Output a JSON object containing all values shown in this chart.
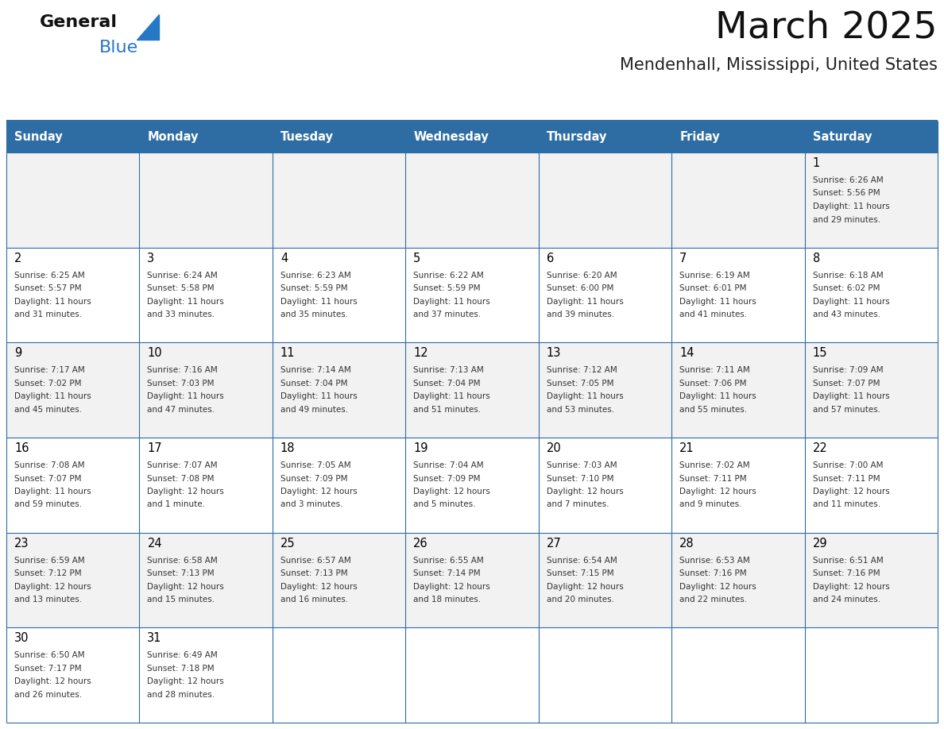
{
  "title": "March 2025",
  "subtitle": "Mendenhall, Mississippi, United States",
  "header_bg": "#2E6DA4",
  "header_text_color": "#FFFFFF",
  "day_names": [
    "Sunday",
    "Monday",
    "Tuesday",
    "Wednesday",
    "Thursday",
    "Friday",
    "Saturday"
  ],
  "row0_bg": "#F2F2F2",
  "row1_bg": "#FFFFFF",
  "row2_bg": "#F2F2F2",
  "row3_bg": "#FFFFFF",
  "row4_bg": "#F2F2F2",
  "row5_bg": "#FFFFFF",
  "cell_border_color": "#2E6DA4",
  "day_num_color": "#000000",
  "cell_text_color": "#333333",
  "logo_general_color": "#111111",
  "logo_blue_color": "#2778C4",
  "calendar": [
    [
      null,
      null,
      null,
      null,
      null,
      null,
      {
        "day": 1,
        "lines": [
          "Sunrise: 6:26 AM",
          "Sunset: 5:56 PM",
          "Daylight: 11 hours",
          "and 29 minutes."
        ]
      }
    ],
    [
      {
        "day": 2,
        "lines": [
          "Sunrise: 6:25 AM",
          "Sunset: 5:57 PM",
          "Daylight: 11 hours",
          "and 31 minutes."
        ]
      },
      {
        "day": 3,
        "lines": [
          "Sunrise: 6:24 AM",
          "Sunset: 5:58 PM",
          "Daylight: 11 hours",
          "and 33 minutes."
        ]
      },
      {
        "day": 4,
        "lines": [
          "Sunrise: 6:23 AM",
          "Sunset: 5:59 PM",
          "Daylight: 11 hours",
          "and 35 minutes."
        ]
      },
      {
        "day": 5,
        "lines": [
          "Sunrise: 6:22 AM",
          "Sunset: 5:59 PM",
          "Daylight: 11 hours",
          "and 37 minutes."
        ]
      },
      {
        "day": 6,
        "lines": [
          "Sunrise: 6:20 AM",
          "Sunset: 6:00 PM",
          "Daylight: 11 hours",
          "and 39 minutes."
        ]
      },
      {
        "day": 7,
        "lines": [
          "Sunrise: 6:19 AM",
          "Sunset: 6:01 PM",
          "Daylight: 11 hours",
          "and 41 minutes."
        ]
      },
      {
        "day": 8,
        "lines": [
          "Sunrise: 6:18 AM",
          "Sunset: 6:02 PM",
          "Daylight: 11 hours",
          "and 43 minutes."
        ]
      }
    ],
    [
      {
        "day": 9,
        "lines": [
          "Sunrise: 7:17 AM",
          "Sunset: 7:02 PM",
          "Daylight: 11 hours",
          "and 45 minutes."
        ]
      },
      {
        "day": 10,
        "lines": [
          "Sunrise: 7:16 AM",
          "Sunset: 7:03 PM",
          "Daylight: 11 hours",
          "and 47 minutes."
        ]
      },
      {
        "day": 11,
        "lines": [
          "Sunrise: 7:14 AM",
          "Sunset: 7:04 PM",
          "Daylight: 11 hours",
          "and 49 minutes."
        ]
      },
      {
        "day": 12,
        "lines": [
          "Sunrise: 7:13 AM",
          "Sunset: 7:04 PM",
          "Daylight: 11 hours",
          "and 51 minutes."
        ]
      },
      {
        "day": 13,
        "lines": [
          "Sunrise: 7:12 AM",
          "Sunset: 7:05 PM",
          "Daylight: 11 hours",
          "and 53 minutes."
        ]
      },
      {
        "day": 14,
        "lines": [
          "Sunrise: 7:11 AM",
          "Sunset: 7:06 PM",
          "Daylight: 11 hours",
          "and 55 minutes."
        ]
      },
      {
        "day": 15,
        "lines": [
          "Sunrise: 7:09 AM",
          "Sunset: 7:07 PM",
          "Daylight: 11 hours",
          "and 57 minutes."
        ]
      }
    ],
    [
      {
        "day": 16,
        "lines": [
          "Sunrise: 7:08 AM",
          "Sunset: 7:07 PM",
          "Daylight: 11 hours",
          "and 59 minutes."
        ]
      },
      {
        "day": 17,
        "lines": [
          "Sunrise: 7:07 AM",
          "Sunset: 7:08 PM",
          "Daylight: 12 hours",
          "and 1 minute."
        ]
      },
      {
        "day": 18,
        "lines": [
          "Sunrise: 7:05 AM",
          "Sunset: 7:09 PM",
          "Daylight: 12 hours",
          "and 3 minutes."
        ]
      },
      {
        "day": 19,
        "lines": [
          "Sunrise: 7:04 AM",
          "Sunset: 7:09 PM",
          "Daylight: 12 hours",
          "and 5 minutes."
        ]
      },
      {
        "day": 20,
        "lines": [
          "Sunrise: 7:03 AM",
          "Sunset: 7:10 PM",
          "Daylight: 12 hours",
          "and 7 minutes."
        ]
      },
      {
        "day": 21,
        "lines": [
          "Sunrise: 7:02 AM",
          "Sunset: 7:11 PM",
          "Daylight: 12 hours",
          "and 9 minutes."
        ]
      },
      {
        "day": 22,
        "lines": [
          "Sunrise: 7:00 AM",
          "Sunset: 7:11 PM",
          "Daylight: 12 hours",
          "and 11 minutes."
        ]
      }
    ],
    [
      {
        "day": 23,
        "lines": [
          "Sunrise: 6:59 AM",
          "Sunset: 7:12 PM",
          "Daylight: 12 hours",
          "and 13 minutes."
        ]
      },
      {
        "day": 24,
        "lines": [
          "Sunrise: 6:58 AM",
          "Sunset: 7:13 PM",
          "Daylight: 12 hours",
          "and 15 minutes."
        ]
      },
      {
        "day": 25,
        "lines": [
          "Sunrise: 6:57 AM",
          "Sunset: 7:13 PM",
          "Daylight: 12 hours",
          "and 16 minutes."
        ]
      },
      {
        "day": 26,
        "lines": [
          "Sunrise: 6:55 AM",
          "Sunset: 7:14 PM",
          "Daylight: 12 hours",
          "and 18 minutes."
        ]
      },
      {
        "day": 27,
        "lines": [
          "Sunrise: 6:54 AM",
          "Sunset: 7:15 PM",
          "Daylight: 12 hours",
          "and 20 minutes."
        ]
      },
      {
        "day": 28,
        "lines": [
          "Sunrise: 6:53 AM",
          "Sunset: 7:16 PM",
          "Daylight: 12 hours",
          "and 22 minutes."
        ]
      },
      {
        "day": 29,
        "lines": [
          "Sunrise: 6:51 AM",
          "Sunset: 7:16 PM",
          "Daylight: 12 hours",
          "and 24 minutes."
        ]
      }
    ],
    [
      {
        "day": 30,
        "lines": [
          "Sunrise: 6:50 AM",
          "Sunset: 7:17 PM",
          "Daylight: 12 hours",
          "and 26 minutes."
        ]
      },
      {
        "day": 31,
        "lines": [
          "Sunrise: 6:49 AM",
          "Sunset: 7:18 PM",
          "Daylight: 12 hours",
          "and 28 minutes."
        ]
      },
      null,
      null,
      null,
      null,
      null
    ]
  ],
  "fig_width": 11.88,
  "fig_height": 9.18,
  "dpi": 100
}
